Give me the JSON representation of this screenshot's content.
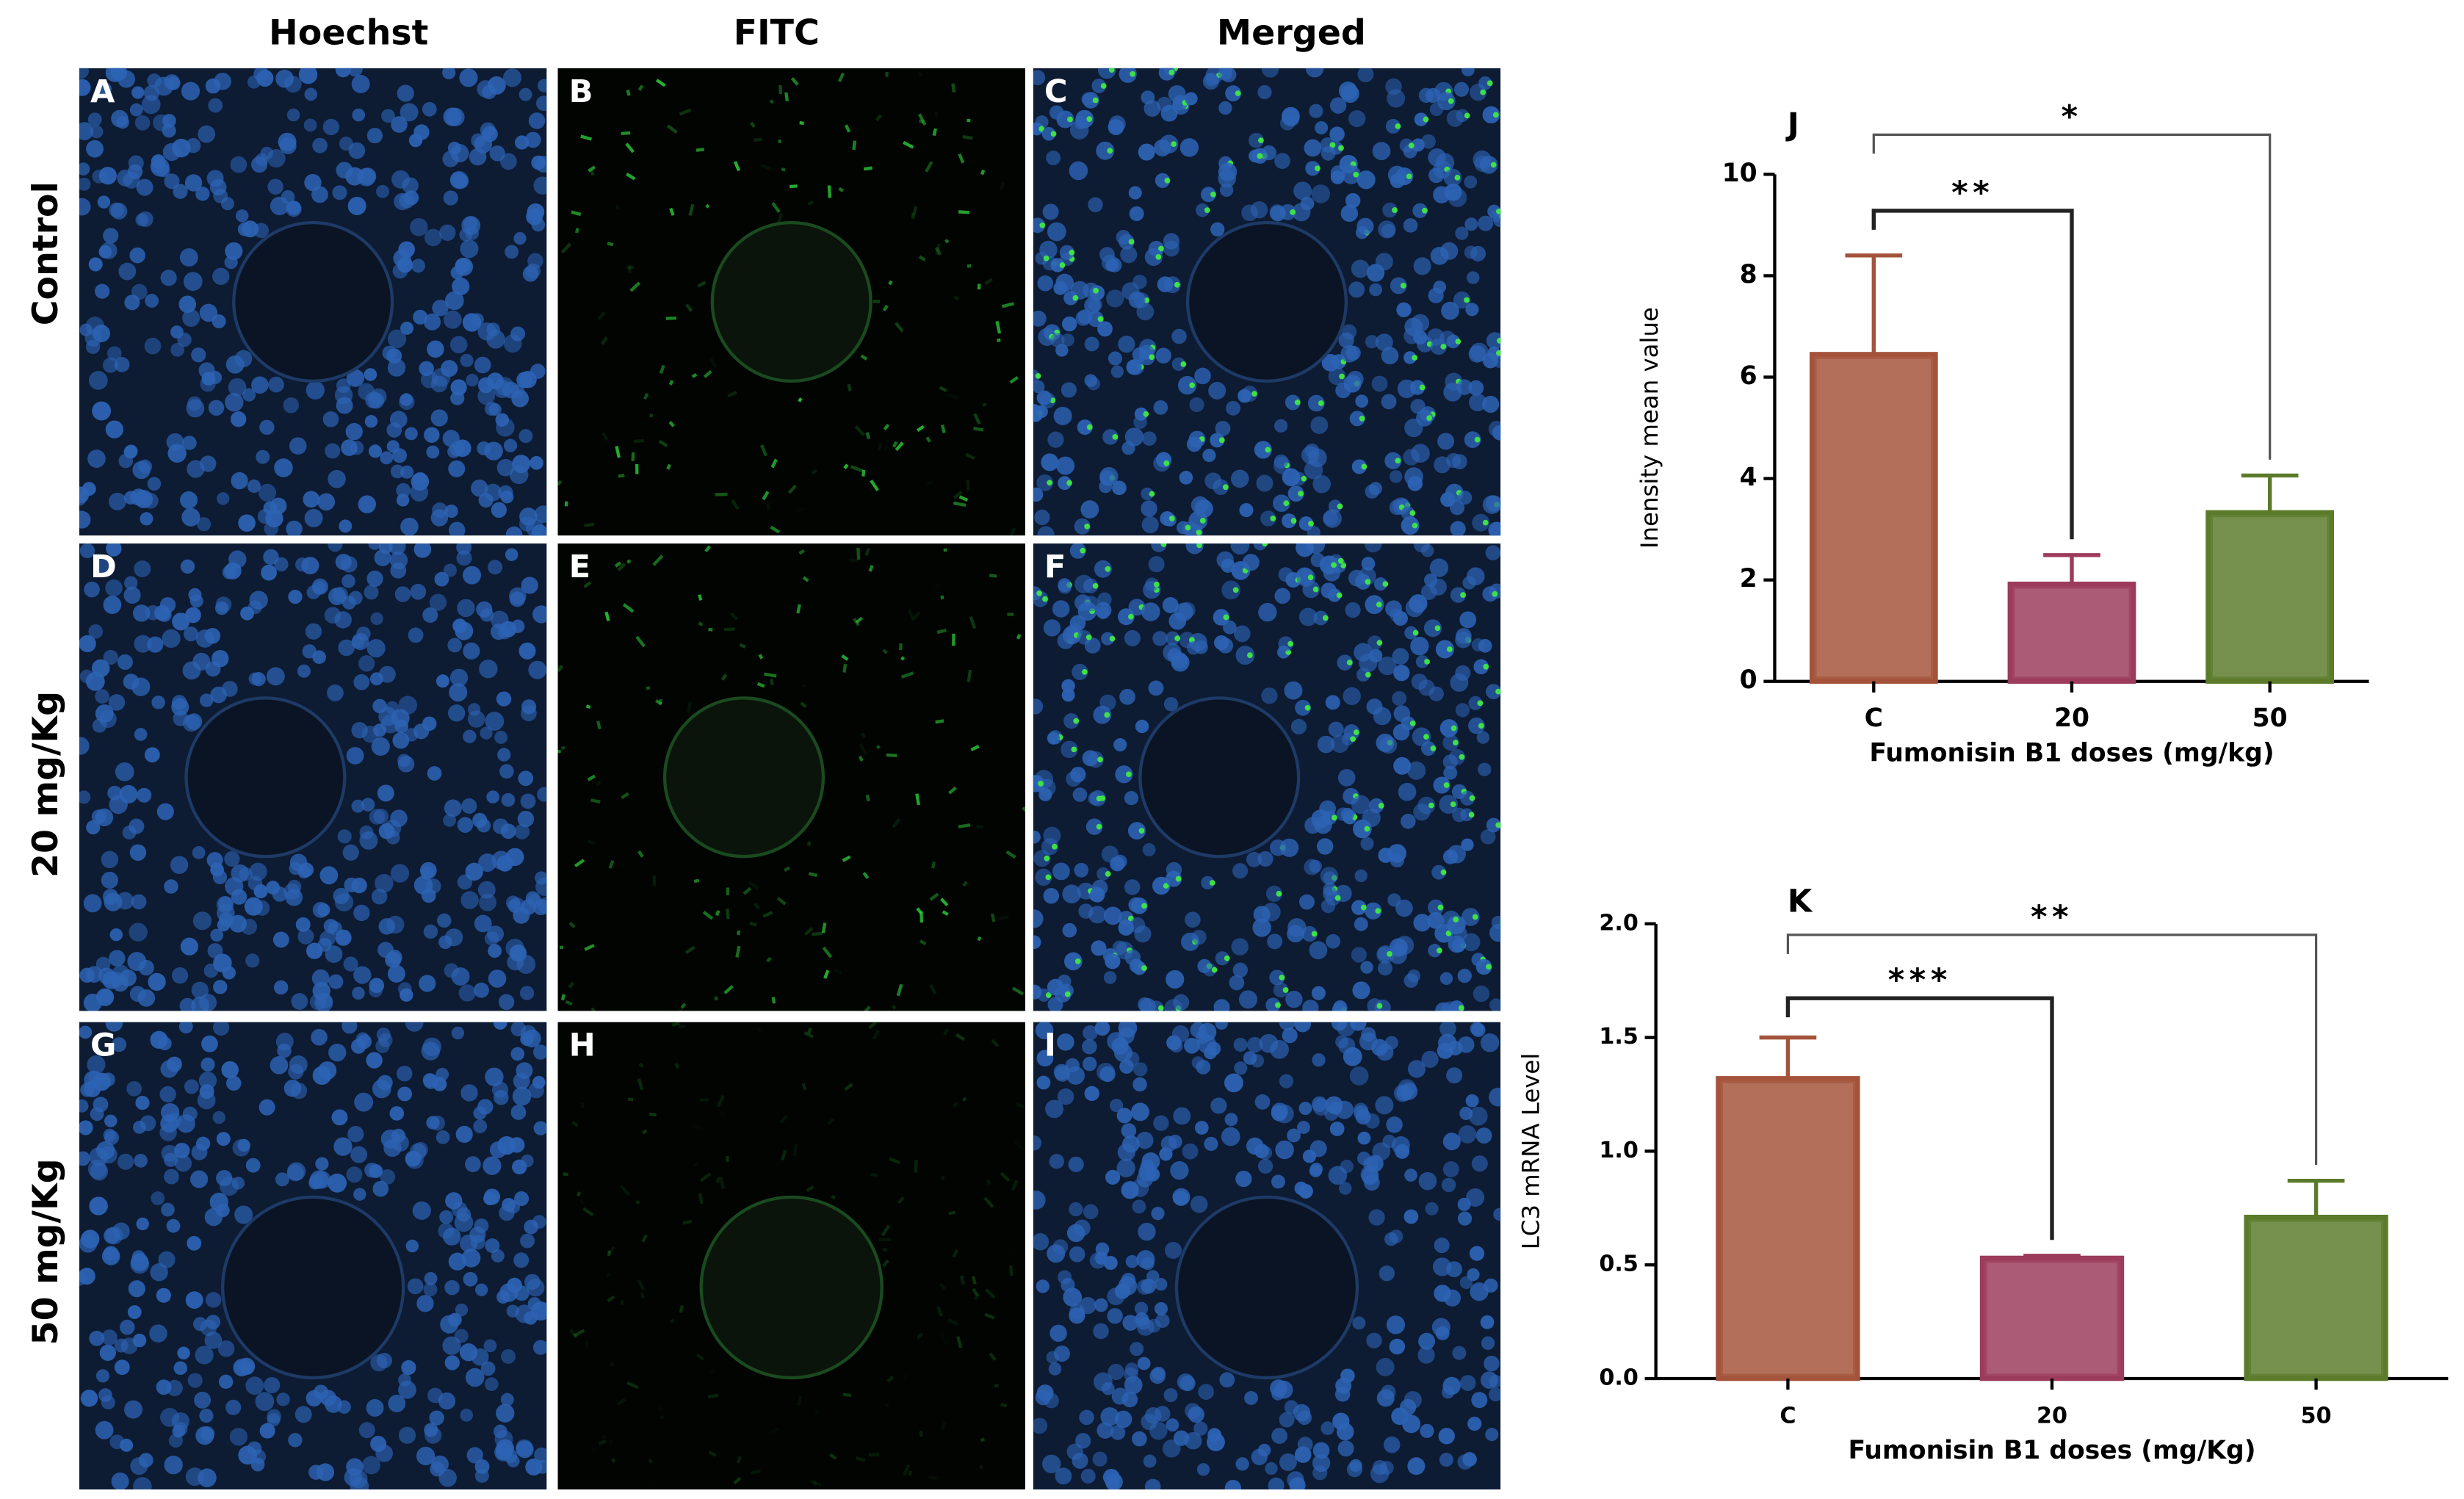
{
  "figure": {
    "columns": [
      "Hoechst",
      "FITC",
      "Merged"
    ],
    "rows": [
      "Control",
      "20 mg/Kg",
      "50 mg/Kg"
    ],
    "panel_letters": [
      "A",
      "B",
      "C",
      "D",
      "E",
      "F",
      "G",
      "H",
      "I"
    ]
  },
  "chart_data": [
    {
      "type": "bar",
      "label": "J",
      "categories": [
        "C",
        "20",
        "50"
      ],
      "values": [
        6.45,
        1.92,
        3.33
      ],
      "errors": [
        1.95,
        0.57,
        0.73
      ],
      "colors": [
        "#a4533a",
        "#9c3b5b",
        "#5b7b2b"
      ],
      "ylim": [
        0,
        10
      ],
      "yticks": [
        0,
        2,
        4,
        6,
        8,
        10
      ],
      "ylabel": "Inensity mean value",
      "xlabel": "Fumonisin B1 doses (mg/kg)",
      "significance": [
        {
          "label": "**",
          "groups": [
            "C",
            "20"
          ]
        },
        {
          "label": "*",
          "groups": [
            "C",
            "50"
          ]
        }
      ]
    },
    {
      "type": "bar",
      "label": "K",
      "categories": [
        "C",
        "20",
        "50"
      ],
      "values": [
        1.32,
        0.53,
        0.71
      ],
      "errors": [
        0.18,
        0.01,
        0.16
      ],
      "colors": [
        "#a4533a",
        "#9c3b5b",
        "#5b7b2b"
      ],
      "ylim": [
        0,
        2
      ],
      "yticks": [
        {
          "value": 0,
          "label": "0.0"
        },
        0.5,
        {
          "value": 1,
          "label": "1.0"
        },
        1.5,
        {
          "value": 2,
          "label": "2.0"
        }
      ],
      "ylabel": "LC3 mRNA Level",
      "xlabel": "Fumonisin B1 doses (mg/Kg)",
      "significance": [
        {
          "label": "***",
          "groups": [
            "C",
            "20"
          ]
        },
        {
          "label": "**",
          "groups": [
            "C",
            "50"
          ]
        }
      ]
    }
  ]
}
